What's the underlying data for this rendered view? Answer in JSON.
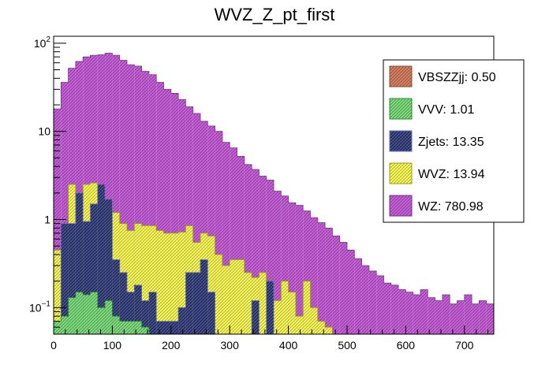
{
  "chart_data": {
    "type": "bar",
    "stacked": true,
    "title": "WVZ_Z_pt_first",
    "xlabel": "",
    "ylabel": "",
    "xlim": [
      0,
      750
    ],
    "ylim": [
      0.05,
      120
    ],
    "yscale": "log",
    "bin_width": 12.5,
    "x_ticks": [
      0,
      100,
      200,
      300,
      400,
      500,
      600,
      700
    ],
    "y_ticks": [
      {
        "value": 0.1,
        "base": "10",
        "exp": "−1"
      },
      {
        "value": 1,
        "label": "1"
      },
      {
        "value": 10,
        "label": "10"
      },
      {
        "value": 100,
        "base": "10",
        "exp": "2"
      }
    ],
    "legend_position": "top-right",
    "series": [
      {
        "name": "WZ",
        "legend": "WZ: 780.98",
        "color": "#cc66dd",
        "hatch": "#7a2e8a",
        "totals": [
          18,
          36,
          52,
          62,
          70,
          73,
          74,
          77,
          73,
          64,
          57,
          55,
          48,
          44,
          36,
          30,
          27,
          23,
          19,
          16,
          13,
          11.5,
          10,
          7.5,
          6.5,
          5.2,
          4.2,
          3.7,
          3.1,
          2.8,
          2.1,
          1.85,
          1.55,
          1.45,
          1.25,
          1.05,
          0.92,
          0.8,
          0.65,
          0.55,
          0.45,
          0.36,
          0.3,
          0.26,
          0.23,
          0.19,
          0.18,
          0.16,
          0.15,
          0.14,
          0.16,
          0.13,
          0.12,
          0.14,
          0.11,
          0.12,
          0.14,
          0.11,
          0.12,
          0.11
        ]
      },
      {
        "name": "WVZ",
        "legend": "WVZ: 13.94",
        "color": "#ffff66",
        "hatch": "#9a9a1a",
        "totals": [
          0.45,
          0.65,
          2.5,
          1.55,
          2.5,
          2.6,
          0.8,
          1.7,
          1.2,
          0.9,
          0.75,
          0.9,
          0.85,
          0.85,
          0.75,
          0.7,
          0.7,
          0.72,
          0.85,
          0.55,
          0.7,
          0.65,
          0.4,
          0.3,
          0.35,
          0.35,
          0.25,
          0.22,
          0.25,
          0.2,
          0.12,
          0.2,
          0.15,
          0.08,
          0.2,
          0.1,
          0.07,
          0.06,
          0.05,
          0.05,
          0.05,
          0,
          0,
          0,
          0,
          0,
          0,
          0,
          0,
          0,
          0,
          0,
          0,
          0,
          0,
          0,
          0,
          0,
          0,
          0
        ]
      },
      {
        "name": "Zjets",
        "legend": "Zjets: 13.35",
        "color": "#1f2a55",
        "hatch": "#6670bb",
        "totals": [
          0.06,
          0.9,
          0.9,
          2.0,
          0.95,
          1.5,
          2.5,
          1.7,
          0.35,
          0.25,
          0.15,
          0.18,
          0.12,
          0.15,
          0.07,
          0.07,
          0.07,
          0.1,
          0.25,
          0.25,
          0.35,
          0.15,
          0.05,
          0.05,
          0,
          0.05,
          0.05,
          0.12,
          0.05,
          0.2,
          0.05,
          0,
          0,
          0,
          0,
          0,
          0,
          0,
          0,
          0,
          0,
          0,
          0,
          0,
          0,
          0,
          0,
          0,
          0,
          0,
          0,
          0,
          0,
          0,
          0,
          0,
          0,
          0,
          0,
          0
        ]
      },
      {
        "name": "VVV",
        "legend": "VVV: 1.01",
        "color": "#8ce08c",
        "hatch": "#2f8a2f",
        "totals": [
          0.07,
          0.08,
          0.13,
          0.15,
          0.14,
          0.15,
          0.1,
          0.12,
          0.08,
          0.07,
          0.07,
          0.07,
          0.06,
          0,
          0,
          0,
          0,
          0,
          0,
          0,
          0,
          0,
          0,
          0,
          0,
          0,
          0,
          0,
          0,
          0,
          0,
          0,
          0,
          0,
          0,
          0,
          0,
          0,
          0,
          0,
          0,
          0,
          0,
          0,
          0,
          0,
          0,
          0,
          0,
          0,
          0,
          0,
          0,
          0,
          0,
          0,
          0,
          0,
          0,
          0
        ]
      },
      {
        "name": "VBSZZjj",
        "legend": "VBSZZjj: 0.50",
        "color": "#d8866a",
        "hatch": "#8a4a2f",
        "totals": [
          0,
          0,
          0,
          0,
          0,
          0,
          0,
          0,
          0,
          0,
          0,
          0,
          0,
          0,
          0,
          0,
          0,
          0,
          0,
          0,
          0,
          0,
          0,
          0,
          0,
          0,
          0,
          0,
          0,
          0,
          0,
          0,
          0,
          0,
          0,
          0,
          0,
          0,
          0,
          0,
          0,
          0,
          0,
          0,
          0,
          0,
          0,
          0,
          0,
          0,
          0,
          0,
          0,
          0,
          0,
          0,
          0,
          0,
          0,
          0
        ]
      }
    ],
    "legend_order": [
      "VBSZZjj",
      "VVV",
      "Zjets",
      "WVZ",
      "WZ"
    ]
  }
}
